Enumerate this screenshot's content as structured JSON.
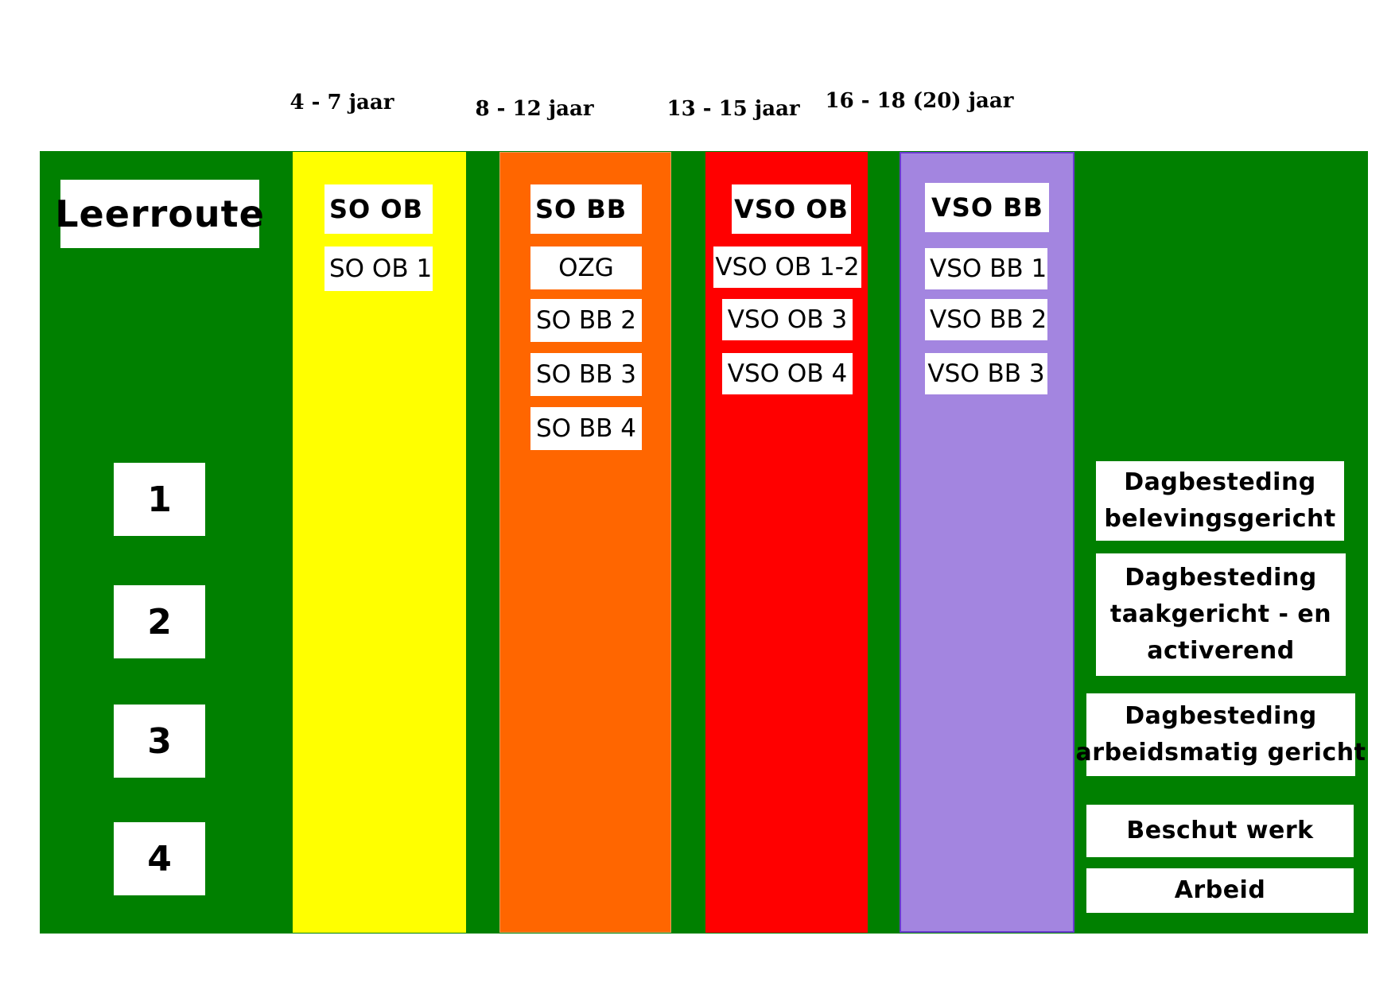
{
  "ages": [
    "4 - 7 jaar",
    "8 - 12 jaar",
    "13 - 15 jaar",
    "16 - 18 (20) jaar"
  ],
  "title": "Leerroute",
  "levels": [
    "1",
    "2",
    "3",
    "4"
  ],
  "columns": [
    {
      "header": "SO OB",
      "items": [
        "SO OB 1"
      ],
      "color": "#ffff00"
    },
    {
      "header": "SO BB",
      "items": [
        "OZG",
        "SO BB 2",
        "SO BB 3",
        "SO BB 4"
      ],
      "color": "#ff6600"
    },
    {
      "header": "VSO OB",
      "items": [
        "VSO OB 1-2",
        "VSO OB 3",
        "VSO OB 4"
      ],
      "color": "#ff0000"
    },
    {
      "header": "VSO BB",
      "items": [
        "VSO BB 1",
        "VSO BB 2",
        "VSO BB 3"
      ],
      "color": "#a385e0"
    }
  ],
  "outcomes": [
    {
      "lines": [
        "Dagbesteding",
        "belevingsgericht"
      ]
    },
    {
      "lines": [
        "Dagbesteding",
        "taakgericht - en",
        "activerend"
      ]
    },
    {
      "lines": [
        "Dagbesteding",
        "arbeidsmatig gericht"
      ]
    },
    {
      "lines": [
        "Beschut werk"
      ]
    },
    {
      "lines": [
        "Arbeid"
      ]
    }
  ],
  "colors": {
    "background": "#008000"
  }
}
